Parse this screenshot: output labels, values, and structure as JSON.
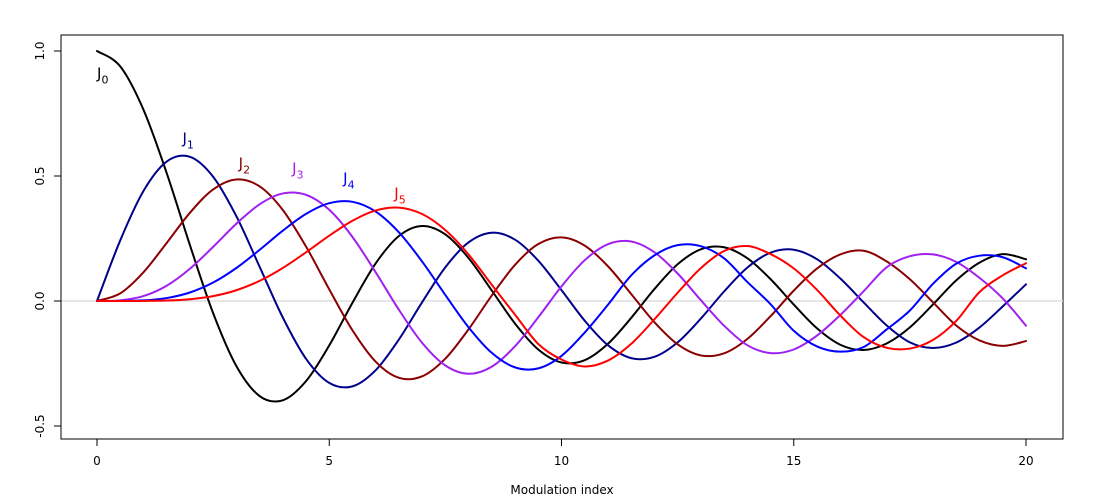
{
  "chart_data": {
    "type": "line",
    "title": "",
    "xlabel": "Modulation index",
    "ylabel": "",
    "xlim": [
      0,
      20
    ],
    "ylim": [
      -0.5,
      1.0
    ],
    "xticks": [
      0,
      5,
      10,
      15,
      20
    ],
    "xtick_labels": [
      "0",
      "5",
      "10",
      "15",
      "20"
    ],
    "yticks": [
      -0.5,
      0.0,
      0.5,
      1.0
    ],
    "ytick_labels": [
      "-0.5",
      "0.0",
      "0.5",
      "1.0"
    ],
    "reference_line": {
      "y": 0,
      "color": "#dddddd"
    },
    "x": [
      0,
      0.5,
      1,
      1.5,
      2,
      2.5,
      3,
      3.5,
      4,
      4.5,
      5,
      5.5,
      6,
      6.5,
      7,
      7.5,
      8,
      8.5,
      9,
      9.5,
      10,
      10.5,
      11,
      11.5,
      12,
      12.5,
      13,
      13.5,
      14,
      14.5,
      15,
      15.5,
      16,
      16.5,
      17,
      17.5,
      18,
      18.5,
      19,
      19.5,
      20
    ],
    "series": [
      {
        "name": "J0",
        "label_base": "J",
        "label_sub": "0",
        "color": "#000000",
        "label_at": [
          0,
          0.89
        ],
        "values": [
          1.0,
          0.9385,
          0.7652,
          0.5118,
          0.2239,
          -0.0484,
          -0.2601,
          -0.3801,
          -0.3971,
          -0.3205,
          -0.1776,
          -0.0068,
          0.1506,
          0.2601,
          0.3001,
          0.2663,
          0.1717,
          0.0419,
          -0.0903,
          -0.1939,
          -0.2459,
          -0.2366,
          -0.1712,
          -0.0677,
          0.0477,
          0.1469,
          0.2069,
          0.215,
          0.1711,
          0.0875,
          -0.0142,
          -0.1092,
          -0.1749,
          -0.196,
          -0.1699,
          -0.1054,
          -0.0134,
          0.083,
          0.1537,
          0.1875,
          0.167
        ]
      },
      {
        "name": "J1",
        "label_base": "J",
        "label_sub": "1",
        "color": "#00008b",
        "label_at": [
          1.84,
          0.63
        ],
        "values": [
          0.0,
          0.2423,
          0.4401,
          0.5579,
          0.5767,
          0.4971,
          0.3391,
          0.1374,
          -0.066,
          -0.2311,
          -0.3276,
          -0.3414,
          -0.2767,
          -0.1538,
          -0.0047,
          0.1352,
          0.2346,
          0.2731,
          0.2453,
          0.1613,
          0.0435,
          -0.0789,
          -0.1768,
          -0.2284,
          -0.2234,
          -0.1655,
          -0.0703,
          0.038,
          0.1334,
          0.1934,
          0.2051,
          0.1672,
          0.0904,
          -0.0047,
          -0.0977,
          -0.1654,
          -0.188,
          -0.166,
          -0.1057,
          -0.0216,
          0.0668
        ]
      },
      {
        "name": "J2",
        "label_base": "J",
        "label_sub": "2",
        "color": "#8b0000",
        "label_at": [
          3.05,
          0.53
        ],
        "values": [
          0.0,
          0.0306,
          0.1149,
          0.2321,
          0.3528,
          0.4461,
          0.4861,
          0.4586,
          0.3641,
          0.2178,
          0.0466,
          -0.1173,
          -0.2429,
          -0.3074,
          -0.3014,
          -0.2303,
          -0.113,
          0.0223,
          0.1448,
          0.2279,
          0.2546,
          0.2216,
          0.139,
          0.028,
          -0.0849,
          -0.1734,
          -0.2177,
          -0.2094,
          -0.152,
          -0.0609,
          0.0415,
          0.1296,
          0.1862,
          0.2011,
          0.1584,
          0.0871,
          -0.0057,
          -0.0985,
          -0.1578,
          -0.1794,
          -0.1603
        ]
      },
      {
        "name": "J3",
        "label_base": "J",
        "label_sub": "3",
        "color": "#a020f0",
        "label_at": [
          4.2,
          0.51
        ],
        "values": [
          0.0,
          0.0026,
          0.0196,
          0.061,
          0.1289,
          0.2166,
          0.3091,
          0.3868,
          0.4302,
          0.4247,
          0.3648,
          0.2561,
          0.1148,
          -0.0353,
          -0.1676,
          -0.2581,
          -0.2911,
          -0.2626,
          -0.1809,
          -0.0652,
          0.0584,
          0.1633,
          0.2273,
          0.2381,
          0.1951,
          0.11,
          0.0033,
          -0.0988,
          -0.1768,
          -0.2083,
          -0.194,
          -0.1384,
          -0.0566,
          0.0382,
          0.1349,
          0.1792,
          0.1863,
          0.1561,
          0.0925,
          0.0102,
          -0.0989
        ]
      },
      {
        "name": "J4",
        "label_base": "J",
        "label_sub": "4",
        "color": "#0000ff",
        "label_at": [
          5.3,
          0.47
        ],
        "values": [
          0.0,
          0.0002,
          0.0025,
          0.0118,
          0.034,
          0.0738,
          0.132,
          0.2044,
          0.2811,
          0.3484,
          0.3912,
          0.3967,
          0.3576,
          0.2748,
          0.1578,
          0.0238,
          -0.1054,
          -0.2077,
          -0.2655,
          -0.2694,
          -0.2196,
          -0.1261,
          -0.015,
          0.1023,
          0.1825,
          0.2234,
          0.2193,
          0.1708,
          0.0762,
          -0.0125,
          -0.1192,
          -0.1818,
          -0.2026,
          -0.1845,
          -0.1138,
          -0.0381,
          0.0692,
          0.1496,
          0.1813,
          0.1749,
          0.1307
        ]
      },
      {
        "name": "J5",
        "label_base": "J",
        "label_sub": "5",
        "color": "#ff0000",
        "label_at": [
          6.4,
          0.41
        ],
        "values": [
          0.0,
          0.0,
          0.0002,
          0.0018,
          0.007,
          0.0195,
          0.043,
          0.0804,
          0.1321,
          0.1947,
          0.2611,
          0.3209,
          0.3621,
          0.3736,
          0.3479,
          0.2835,
          0.1858,
          0.0646,
          -0.055,
          -0.1719,
          -0.2341,
          -0.2619,
          -0.2383,
          -0.1715,
          -0.0735,
          0.033,
          0.1316,
          0.1999,
          0.2198,
          0.1877,
          0.1305,
          0.0446,
          -0.0575,
          -0.1438,
          -0.187,
          -0.1902,
          -0.1554,
          -0.0792,
          0.036,
          0.1028,
          0.1512
        ]
      }
    ]
  }
}
